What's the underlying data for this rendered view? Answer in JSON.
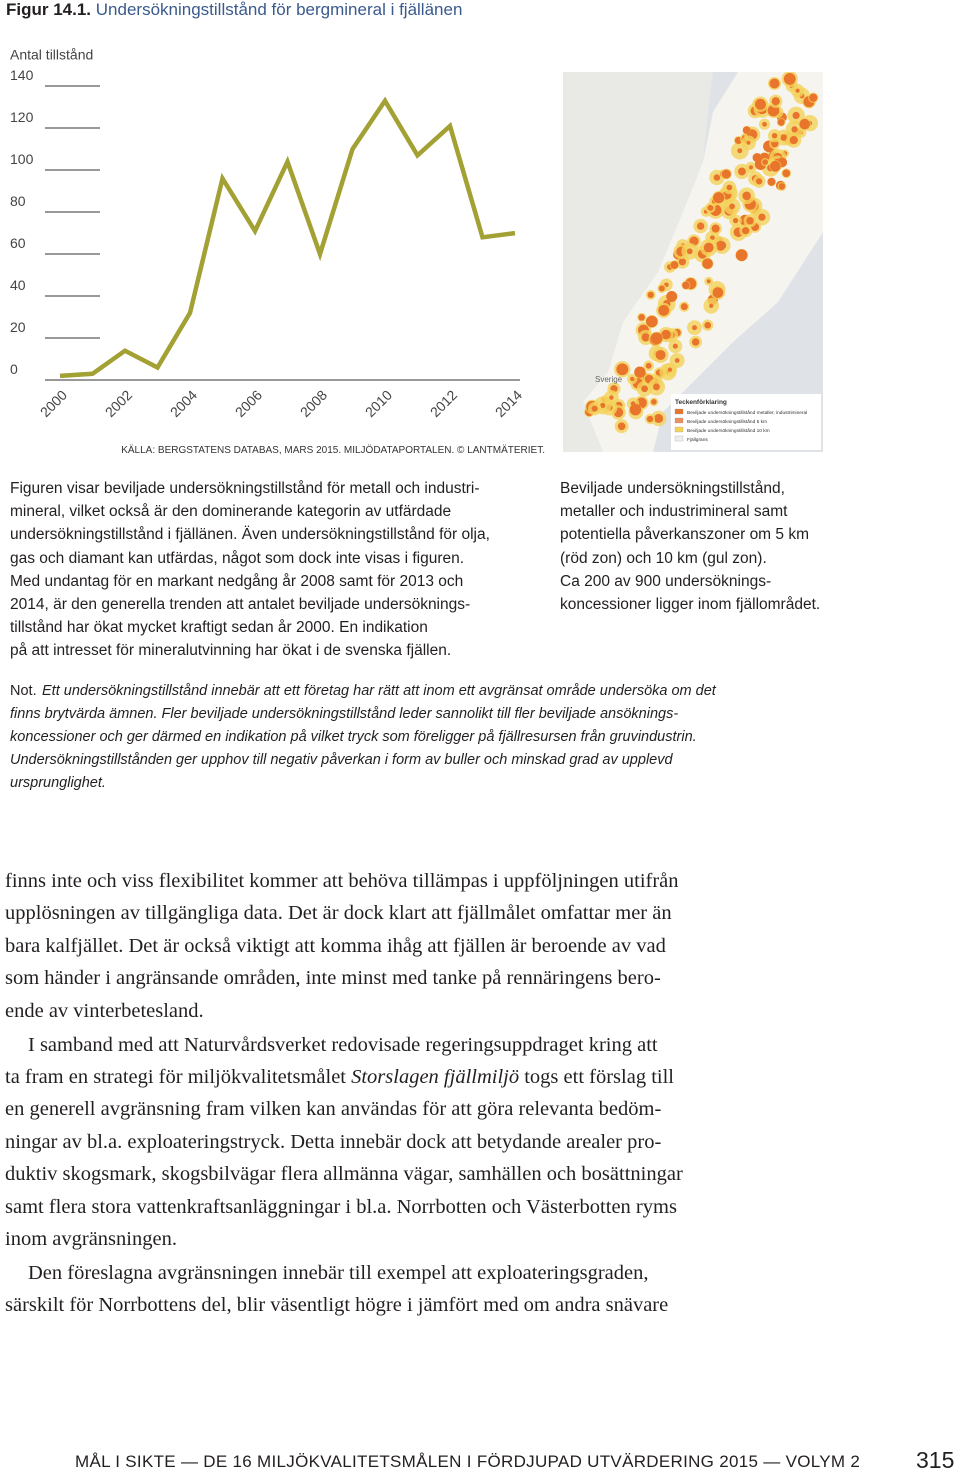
{
  "figure": {
    "label": "Figur 14.1.",
    "title": "Undersökningstillstånd för bergmineral i fjällänen"
  },
  "chart_data": {
    "type": "line",
    "y_label": "Antal tillstånd",
    "x": [
      2000,
      2001,
      2002,
      2003,
      2004,
      2005,
      2006,
      2007,
      2008,
      2009,
      2010,
      2011,
      2012,
      2013,
      2014
    ],
    "series": [
      {
        "name": "Undersökningstillstånd",
        "color": "#a3a034",
        "values": [
          1,
          2,
          13,
          5,
          31,
          95,
          70,
          103,
          59,
          109,
          132,
          106,
          120,
          67,
          69
        ]
      }
    ],
    "xlim": [
      2000,
      2014
    ],
    "xticks": [
      2000,
      2002,
      2004,
      2006,
      2008,
      2010,
      2012,
      2014
    ],
    "ylim": [
      0,
      140
    ],
    "yticks": [
      0,
      20,
      40,
      60,
      80,
      100,
      120,
      140
    ]
  },
  "source": "KÄLLA: BERGSTATENS DATABAS, MARS 2015. MILJÖDATAPORTALEN. © LANTMÄTERIET.",
  "map": {
    "country": "Sverige",
    "legend_title": "Teckenförklaring",
    "legend": [
      "Beviljade undersökningstillstånd metaller, industrimineral",
      "Beviljade undersökningstillstånd 5 km",
      "Beviljade undersökningstillstånd 10 km",
      "Fjällgräns"
    ]
  },
  "caption_left": [
    "Figuren visar beviljade undersökningstillstånd för metall och industri-",
    "mineral, vilket också är den dominerande kategorin av utfärdade",
    "undersökningstillstånd i fjällänen. Även undersökningstillstånd för olja,",
    "gas och diamant kan utfärdas, något som dock inte visas i figuren.",
    "Med undantag för en markant nedgång år 2008 samt för 2013 och",
    "2014, är den generella trenden att antalet beviljade undersöknings-",
    "tillstånd har ökat mycket kraftigt sedan år 2000. En indikation",
    "på att intresset för mineralutvinning har ökat i de svenska fjällen."
  ],
  "caption_right": [
    "Beviljade undersökningstillstånd,",
    "metaller och industrimineral samt",
    "potentiella påverkanszoner om 5 km",
    "(röd zon) och 10 km (gul zon).",
    "Ca 200 av 900 undersöknings-",
    "koncessioner ligger inom fjällområdet."
  ],
  "note": {
    "label": "Not.",
    "lines": [
      "Ett undersökningstillstånd innebär att ett företag har rätt att inom ett avgränsat område undersöka om det",
      "finns brytvärda ämnen. Fler beviljade undersökningstillstånd leder sannolikt till fler beviljade ansöknings-",
      "koncessioner och ger därmed en indikation på vilket tryck som föreligger på fjällresursen från gruvindustrin.",
      "Undersökningstillstånden ger upphov till negativ påverkan i form av buller och minskad grad av upplevd",
      "ursprunglighet."
    ]
  },
  "body": [
    [
      "finns inte och viss flexibilitet kommer att behöva tillämpas i uppföljningen utifrån",
      "upplösningen av tillgängliga data. Det är dock klart att fjällmålet omfattar mer än",
      "bara kalfjället. Det är också viktigt att komma ihåg att fjällen är beroende av vad",
      "som händer i angränsande områden, inte minst med tanke på rennäringens bero-",
      "ende av vinterbetesland."
    ],
    [
      "I samband med att Naturvårdsverket redovisade regeringsuppdraget kring att",
      [
        "ta fram en strategi för miljökvalitetsmålet ",
        "Storslagen fjällmiljö",
        " togs ett förslag till"
      ],
      "en generell avgränsning fram vilken kan användas för att göra relevanta bedöm-",
      "ningar av bl.a. exploateringstryck. Detta innebär dock att betydande arealer pro-",
      "duktiv skogsmark, skogsbilvägar flera allmänna vägar, samhällen och bosättningar",
      "samt flera stora vattenkraftsanläggningar i bl.a. Norrbotten och Västerbotten ryms",
      "inom avgränsningen."
    ],
    [
      "Den föreslagna avgränsningen innebär till exempel att exploateringsgraden,",
      "särskilt för Norrbottens del, blir väsentligt högre i jämfört med om andra snävare"
    ]
  ],
  "footer": {
    "text": "MÅL I SIKTE — DE 16 MILJÖKVALITETSMÅLEN I FÖRDJUPAD UTVÄRDERING 2015 — VOLYM 2",
    "page": "315"
  }
}
